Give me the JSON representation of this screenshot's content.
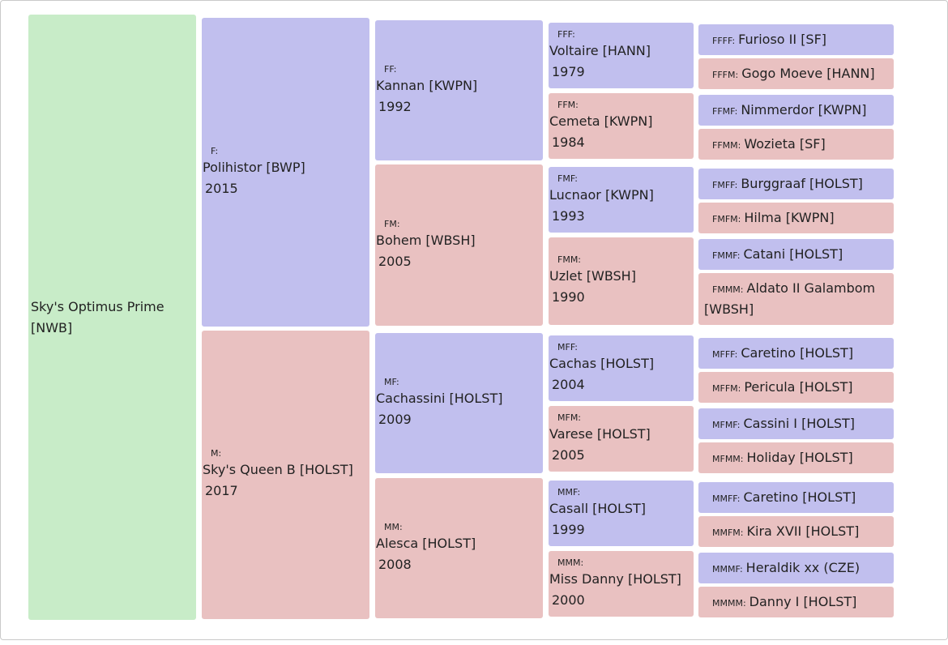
{
  "subject": {
    "name": "Sky's Optimus Prime [NWB]"
  },
  "gen1": [
    {
      "code": "F:",
      "name": "Polihistor [BWP]",
      "year": "2015",
      "sex": "sire"
    },
    {
      "code": "M:",
      "name": "Sky's Queen B [HOLST]",
      "year": "2017",
      "sex": "dam"
    }
  ],
  "gen2": [
    {
      "code": "FF:",
      "name": "Kannan [KWPN]",
      "year": "1992",
      "sex": "sire"
    },
    {
      "code": "FM:",
      "name": "Bohem [WBSH]",
      "year": "2005",
      "sex": "dam"
    },
    {
      "code": "MF:",
      "name": "Cachassini [HOLST]",
      "year": "2009",
      "sex": "sire"
    },
    {
      "code": "MM:",
      "name": "Alesca [HOLST]",
      "year": "2008",
      "sex": "dam"
    }
  ],
  "gen3": [
    {
      "code": "FFF:",
      "name": "Voltaire [HANN]",
      "year": "1979",
      "sex": "sire"
    },
    {
      "code": "FFM:",
      "name": "Cemeta [KWPN]",
      "year": "1984",
      "sex": "dam"
    },
    {
      "code": "FMF:",
      "name": "Lucnaor [KWPN]",
      "year": "1993",
      "sex": "sire"
    },
    {
      "code": "FMM:",
      "name": "Uzlet [WBSH]",
      "year": "1990",
      "sex": "dam"
    },
    {
      "code": "MFF:",
      "name": "Cachas [HOLST]",
      "year": "2004",
      "sex": "sire"
    },
    {
      "code": "MFM:",
      "name": "Varese [HOLST]",
      "year": "2005",
      "sex": "dam"
    },
    {
      "code": "MMF:",
      "name": "Casall [HOLST]",
      "year": "1999",
      "sex": "sire"
    },
    {
      "code": "MMM:",
      "name": "Miss Danny [HOLST]",
      "year": "2000",
      "sex": "dam"
    }
  ],
  "gen4": [
    {
      "code": "FFFF:",
      "name": "Furioso II [SF]",
      "sex": "sire"
    },
    {
      "code": "FFFM:",
      "name": "Gogo Moeve [HANN]",
      "sex": "dam"
    },
    {
      "code": "FFMF:",
      "name": "Nimmerdor [KWPN]",
      "sex": "sire"
    },
    {
      "code": "FFMM:",
      "name": "Wozieta [SF]",
      "sex": "dam"
    },
    {
      "code": "FMFF:",
      "name": "Burggraaf [HOLST]",
      "sex": "sire"
    },
    {
      "code": "FMFM:",
      "name": "Hilma [KWPN]",
      "sex": "dam"
    },
    {
      "code": "FMMF:",
      "name": "Catani [HOLST]",
      "sex": "sire"
    },
    {
      "code": "FMMM:",
      "name": "Aldato II Galambom [WBSH]",
      "sex": "dam"
    },
    {
      "code": "MFFF:",
      "name": "Caretino [HOLST]",
      "sex": "sire"
    },
    {
      "code": "MFFM:",
      "name": "Pericula [HOLST]",
      "sex": "dam"
    },
    {
      "code": "MFMF:",
      "name": "Cassini I [HOLST]",
      "sex": "sire"
    },
    {
      "code": "MFMM:",
      "name": "Holiday [HOLST]",
      "sex": "dam"
    },
    {
      "code": "MMFF:",
      "name": "Caretino [HOLST]",
      "sex": "sire"
    },
    {
      "code": "MMFM:",
      "name": "Kira XVII [HOLST]",
      "sex": "dam"
    },
    {
      "code": "MMMF:",
      "name": "Heraldik xx (CZE)",
      "sex": "sire"
    },
    {
      "code": "MMMM:",
      "name": "Danny I [HOLST]",
      "sex": "dam"
    }
  ]
}
